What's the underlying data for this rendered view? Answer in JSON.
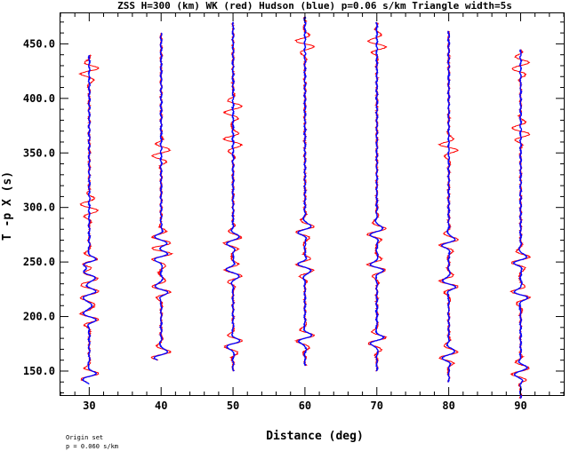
{
  "chart_data": {
    "type": "line",
    "title": "ZSS H=300 (km) WK (red) Hudson (blue) p=0.06 s/km Triangle width=5s",
    "xlabel": "Distance (deg)",
    "ylabel": "T -p X (s)",
    "xlim": [
      26,
      96
    ],
    "ylim": [
      128,
      478
    ],
    "x_ticks": [
      30,
      40,
      50,
      60,
      70,
      80,
      90
    ],
    "y_ticks": [
      150,
      200,
      250,
      300,
      350,
      400,
      450
    ],
    "x_tick_labels": [
      "30",
      "40",
      "50",
      "60",
      "70",
      "80",
      "90"
    ],
    "y_tick_labels": [
      "150.0",
      "200.0",
      "250.0",
      "300.0",
      "350.0",
      "400.0",
      "450.0"
    ],
    "grid": false,
    "legend": "none",
    "footnote": [
      "Origin set",
      "p = 0.060 s/km"
    ],
    "series": [
      {
        "color": "#ff0000",
        "distance": 30,
        "y_range": [
          140,
          440
        ],
        "arrivals": [
          145,
          200,
          220,
          238,
          250,
          300,
          425
        ]
      },
      {
        "color": "#0000ff",
        "distance": 30,
        "y_range": [
          138,
          440
        ],
        "arrivals": [
          145,
          200,
          220,
          238,
          250
        ]
      },
      {
        "color": "#ff0000",
        "distance": 40,
        "y_range": [
          160,
          460
        ],
        "arrivals": [
          165,
          225,
          255,
          270,
          350
        ]
      },
      {
        "color": "#0000ff",
        "distance": 40,
        "y_range": [
          160,
          460
        ],
        "arrivals": [
          165,
          225,
          255,
          270
        ]
      },
      {
        "color": "#ff0000",
        "distance": 50,
        "y_range": [
          150,
          470
        ],
        "arrivals": [
          175,
          240,
          270,
          360,
          390
        ]
      },
      {
        "color": "#0000ff",
        "distance": 50,
        "y_range": [
          150,
          470
        ],
        "arrivals": [
          175,
          240,
          270
        ]
      },
      {
        "color": "#ff0000",
        "distance": 60,
        "y_range": [
          155,
          475
        ],
        "arrivals": [
          180,
          245,
          280,
          450
        ]
      },
      {
        "color": "#0000ff",
        "distance": 60,
        "y_range": [
          155,
          475
        ],
        "arrivals": [
          180,
          245,
          280
        ]
      },
      {
        "color": "#ff0000",
        "distance": 70,
        "y_range": [
          150,
          470
        ],
        "arrivals": [
          178,
          245,
          278,
          450
        ]
      },
      {
        "color": "#0000ff",
        "distance": 70,
        "y_range": [
          150,
          470
        ],
        "arrivals": [
          178,
          245,
          278
        ]
      },
      {
        "color": "#ff0000",
        "distance": 80,
        "y_range": [
          140,
          462
        ],
        "arrivals": [
          165,
          230,
          268,
          355
        ]
      },
      {
        "color": "#0000ff",
        "distance": 80,
        "y_range": [
          140,
          462
        ],
        "arrivals": [
          165,
          230,
          268
        ]
      },
      {
        "color": "#ff0000",
        "distance": 90,
        "y_range": [
          125,
          445
        ],
        "arrivals": [
          150,
          220,
          252,
          370,
          430
        ]
      },
      {
        "color": "#0000ff",
        "distance": 90,
        "y_range": [
          125,
          445
        ],
        "arrivals": [
          150,
          220,
          252
        ]
      }
    ]
  }
}
